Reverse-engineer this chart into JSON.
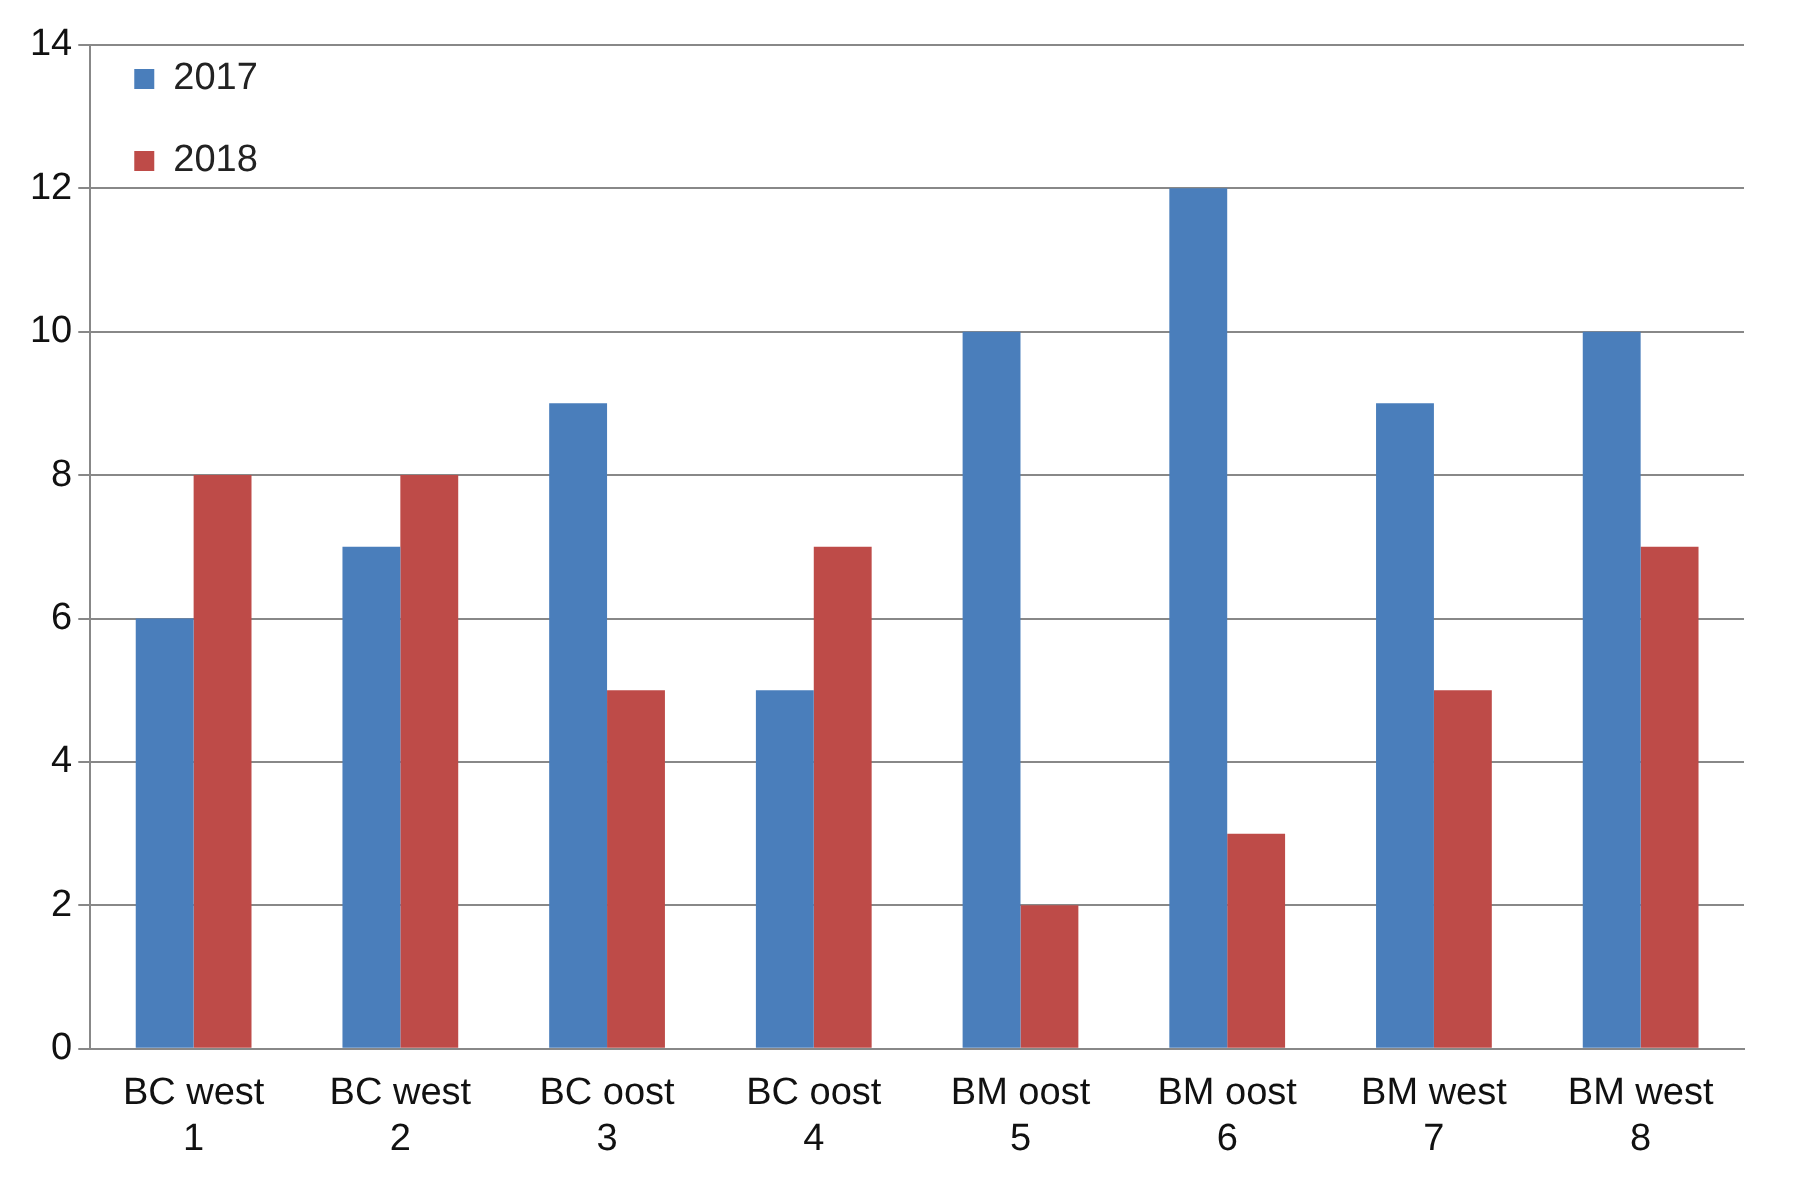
{
  "chart_data": {
    "type": "bar",
    "categories": [
      "BC west 1",
      "BC west 2",
      "BC oost 3",
      "BC oost 4",
      "BM oost 5",
      "BM oost 6",
      "BM west 7",
      "BM west 8"
    ],
    "series": [
      {
        "name": "2017",
        "color": "#4a7ebb",
        "values": [
          6,
          7,
          9,
          5,
          10,
          12,
          9,
          10
        ]
      },
      {
        "name": "2018",
        "color": "#be4b48",
        "values": [
          8,
          8,
          5,
          7,
          2,
          3,
          5,
          7
        ]
      }
    ],
    "ylim": [
      0,
      14
    ],
    "yticks": [
      0,
      2,
      4,
      6,
      8,
      10,
      12,
      14
    ],
    "grid": "y",
    "legend": "top left"
  }
}
